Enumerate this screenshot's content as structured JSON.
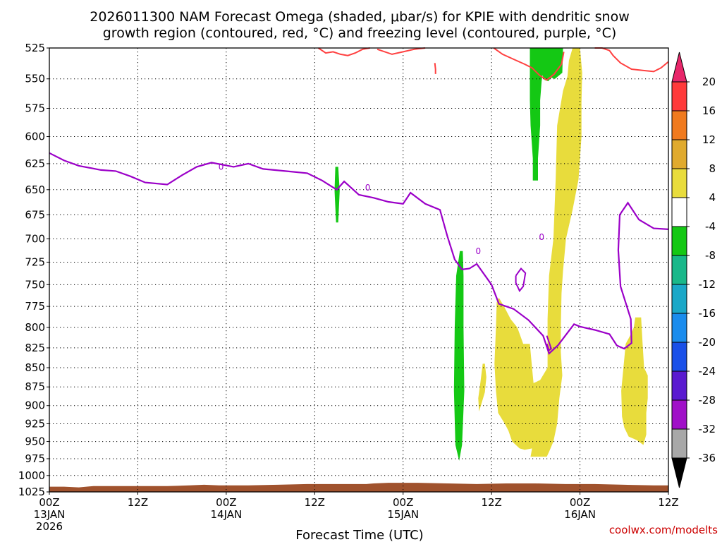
{
  "title_line1": "2026011300 NAM Forecast Omega (shaded, μbar/s) for KPIE with dendritic snow",
  "title_line2": "growth region (contoured, red, °C) and freezing level (contoured, purple, °C)",
  "watermark": "coolwx.com/modelts",
  "chart_data": {
    "type": "time-height contour",
    "xlabel": "Forecast Time (UTC)",
    "ylabel": "",
    "x_range_hours": [
      0,
      84
    ],
    "y_range_mb": [
      525,
      1025
    ],
    "y_axis": "pressure_log_inverted",
    "y_ticks": [
      "525",
      "550",
      "575",
      "600",
      "625",
      "650",
      "675",
      "700",
      "725",
      "750",
      "775",
      "800",
      "825",
      "850",
      "875",
      "900",
      "925",
      "950",
      "975",
      "1000",
      "1025"
    ],
    "x_ticks": [
      {
        "hour": 0,
        "label": "00Z",
        "sub": "13JAN",
        "sub2": "2026"
      },
      {
        "hour": 12,
        "label": "12Z",
        "sub": "",
        "sub2": ""
      },
      {
        "hour": 24,
        "label": "00Z",
        "sub": "14JAN",
        "sub2": ""
      },
      {
        "hour": 36,
        "label": "12Z",
        "sub": "",
        "sub2": ""
      },
      {
        "hour": 48,
        "label": "00Z",
        "sub": "15JAN",
        "sub2": ""
      },
      {
        "hour": 60,
        "label": "12Z",
        "sub": "",
        "sub2": ""
      },
      {
        "hour": 72,
        "label": "00Z",
        "sub": "16JAN",
        "sub2": ""
      },
      {
        "hour": 84,
        "label": "12Z",
        "sub": "",
        "sub2": ""
      }
    ],
    "grid": true,
    "colorbar": {
      "labels": [
        "20",
        "16",
        "12",
        "8",
        "4",
        "-4",
        "-8",
        "-12",
        "-16",
        "-20",
        "-24",
        "-28",
        "-32",
        "-36"
      ],
      "colors": [
        "#e8266a",
        "#ff3a3a",
        "#f07a1e",
        "#e0aa2e",
        "#e8dc3c",
        "#ffffff",
        "#14c814",
        "#19b88a",
        "#1aa8c8",
        "#1a8ced",
        "#1a50e8",
        "#5a1ad0",
        "#a010c8",
        "#a8a8a8",
        "#000000"
      ]
    },
    "freezing_level": {
      "name": "freezing level",
      "color": "#9b00c8",
      "points": [
        [
          0,
          615
        ],
        [
          2,
          622
        ],
        [
          4,
          627
        ],
        [
          7,
          631
        ],
        [
          9,
          632
        ],
        [
          11,
          637
        ],
        [
          13,
          643
        ],
        [
          16,
          645
        ],
        [
          18,
          636
        ],
        [
          20,
          628
        ],
        [
          22,
          624
        ],
        [
          25,
          628
        ],
        [
          27,
          625
        ],
        [
          29,
          630
        ],
        [
          32,
          632
        ],
        [
          35,
          634
        ],
        [
          37,
          641
        ],
        [
          39,
          650
        ],
        [
          40,
          642
        ],
        [
          42,
          655
        ],
        [
          44,
          658
        ],
        [
          46,
          662
        ],
        [
          48,
          664
        ],
        [
          49,
          653
        ],
        [
          51,
          664
        ],
        [
          53,
          670
        ],
        [
          54,
          697
        ],
        [
          55,
          722
        ],
        [
          56,
          733
        ],
        [
          57,
          732
        ],
        [
          58,
          727
        ],
        [
          60,
          750
        ],
        [
          61,
          772
        ],
        [
          63,
          778
        ],
        [
          65,
          791
        ],
        [
          67,
          810
        ],
        [
          67.8,
          832
        ],
        [
          69,
          822
        ],
        [
          70,
          810
        ],
        [
          71.2,
          796
        ],
        [
          72,
          799
        ],
        [
          74,
          803
        ],
        [
          76,
          808
        ],
        [
          77,
          822
        ],
        [
          78,
          826
        ],
        [
          79,
          819
        ],
        [
          78.9,
          790
        ],
        [
          77.5,
          752
        ],
        [
          77.2,
          712
        ],
        [
          77.4,
          675
        ],
        [
          78.5,
          663
        ],
        [
          80,
          680
        ],
        [
          82,
          689
        ],
        [
          84,
          690
        ]
      ]
    },
    "freezing_level_label": {
      "text": "0",
      "hour": 23.3,
      "mb": 628
    },
    "freezing_level_extra_labels": [
      {
        "text": "0",
        "hour": 43.2,
        "mb": 648
      },
      {
        "text": "0",
        "hour": 58.2,
        "mb": 713
      },
      {
        "text": "0",
        "hour": 66.8,
        "mb": 698
      }
    ],
    "freezing_level_loops": [
      [
        [
          63.3,
          740
        ],
        [
          64,
          732
        ],
        [
          64.6,
          737
        ],
        [
          64.3,
          752
        ],
        [
          63.8,
          757
        ],
        [
          63.3,
          748
        ],
        [
          63.3,
          740
        ]
      ],
      [
        [
          67.5,
          810
        ],
        [
          67.8,
          818
        ],
        [
          68.1,
          826
        ],
        [
          67.8,
          828
        ],
        [
          67.5,
          820
        ]
      ]
    ],
    "dgz_contours": {
      "name": "dendritic snow growth region",
      "color": "#ff4040",
      "lines": [
        [
          [
            36.5,
            525
          ],
          [
            37.5,
            529
          ],
          [
            38.5,
            528
          ],
          [
            39.5,
            530
          ],
          [
            40.5,
            531
          ],
          [
            41.5,
            529
          ],
          [
            42.5,
            526
          ],
          [
            43.5,
            525
          ]
        ],
        [
          [
            44.5,
            526
          ],
          [
            46.5,
            530
          ],
          [
            48,
            528
          ],
          [
            49.5,
            526
          ],
          [
            51,
            525
          ]
        ],
        [
          [
            52.3,
            537
          ],
          [
            52.4,
            542
          ],
          [
            52.4,
            546
          ]
        ],
        [
          [
            60.3,
            525
          ],
          [
            61.5,
            530
          ],
          [
            63,
            534
          ],
          [
            64.5,
            538
          ],
          [
            65.5,
            541
          ],
          [
            66.5,
            547
          ],
          [
            67.5,
            551
          ],
          [
            68.5,
            546
          ],
          [
            69.5,
            538
          ],
          [
            69.8,
            528
          ]
        ],
        [
          [
            74,
            525
          ],
          [
            75,
            525
          ],
          [
            76,
            527
          ],
          [
            76.5,
            531
          ],
          [
            77.5,
            537
          ],
          [
            79,
            542
          ],
          [
            80.5,
            543
          ],
          [
            82,
            544
          ],
          [
            83,
            541
          ],
          [
            84,
            536
          ]
        ]
      ]
    },
    "omega_rising_green": [
      [
        [
          38.8,
          628
        ],
        [
          39.2,
          628
        ],
        [
          39.4,
          651
        ],
        [
          39.2,
          683
        ],
        [
          38.9,
          683
        ],
        [
          38.7,
          651
        ],
        [
          38.8,
          628
        ]
      ],
      [
        [
          55.7,
          713
        ],
        [
          56.1,
          713
        ],
        [
          56.2,
          740
        ],
        [
          56.2,
          800
        ],
        [
          56.3,
          880
        ],
        [
          56.0,
          955
        ],
        [
          55.6,
          978
        ],
        [
          55.1,
          955
        ],
        [
          54.9,
          880
        ],
        [
          55.0,
          800
        ],
        [
          55.2,
          740
        ],
        [
          55.7,
          713
        ]
      ],
      [
        [
          65.2,
          525
        ],
        [
          69.7,
          525
        ],
        [
          69.6,
          545
        ],
        [
          68.6,
          550
        ],
        [
          68.1,
          549
        ],
        [
          67.7,
          552
        ],
        [
          67.2,
          551
        ],
        [
          66.9,
          547
        ],
        [
          66.8,
          552
        ],
        [
          66.6,
          568
        ],
        [
          66.6,
          590
        ],
        [
          66.3,
          620
        ],
        [
          66.3,
          641
        ],
        [
          65.6,
          641
        ],
        [
          65.6,
          620
        ],
        [
          65.3,
          590
        ],
        [
          65.2,
          568
        ],
        [
          65.2,
          545
        ],
        [
          65.2,
          525
        ]
      ]
    ],
    "omega_sinking_yellow": [
      [
        [
          71.0,
          525
        ],
        [
          72.0,
          525
        ],
        [
          72.3,
          545
        ],
        [
          72.2,
          570
        ],
        [
          72.2,
          600
        ],
        [
          71.8,
          640
        ],
        [
          71.0,
          670
        ],
        [
          70.1,
          700
        ],
        [
          69.7,
          735
        ],
        [
          69.5,
          760
        ],
        [
          69.4,
          800
        ],
        [
          69.4,
          830
        ],
        [
          69.6,
          860
        ],
        [
          69.2,
          890
        ],
        [
          68.9,
          925
        ],
        [
          68.4,
          950
        ],
        [
          67.8,
          965
        ],
        [
          67.5,
          972
        ],
        [
          66.6,
          972
        ],
        [
          66.0,
          972
        ],
        [
          65.3,
          972
        ],
        [
          65.5,
          960
        ],
        [
          64.5,
          962
        ],
        [
          63.8,
          960
        ],
        [
          62.8,
          950
        ],
        [
          62.3,
          935
        ],
        [
          61.8,
          925
        ],
        [
          60.9,
          910
        ],
        [
          60.6,
          880
        ],
        [
          60.4,
          845
        ],
        [
          60.6,
          800
        ],
        [
          60.7,
          770
        ],
        [
          61.0,
          765
        ],
        [
          61.7,
          775
        ],
        [
          62.6,
          790
        ],
        [
          63.5,
          800
        ],
        [
          64.3,
          820
        ],
        [
          65.2,
          820
        ],
        [
          65.5,
          850
        ],
        [
          65.7,
          870
        ],
        [
          66.6,
          866
        ],
        [
          67.6,
          850
        ],
        [
          67.6,
          790
        ],
        [
          67.8,
          740
        ],
        [
          68.4,
          700
        ],
        [
          68.7,
          640
        ],
        [
          68.9,
          590
        ],
        [
          69.3,
          575
        ],
        [
          69.7,
          560
        ],
        [
          70.3,
          548
        ],
        [
          70.5,
          535
        ],
        [
          71.0,
          525
        ]
      ],
      [
        [
          58.8,
          845
        ],
        [
          59.1,
          845
        ],
        [
          59.3,
          862
        ],
        [
          59.1,
          882
        ],
        [
          58.7,
          895
        ],
        [
          58.3,
          908
        ],
        [
          58.2,
          890
        ],
        [
          58.5,
          868
        ],
        [
          58.8,
          845
        ]
      ],
      [
        [
          79.5,
          788
        ],
        [
          80.3,
          788
        ],
        [
          80.5,
          820
        ],
        [
          80.7,
          850
        ],
        [
          81.2,
          860
        ],
        [
          81.2,
          890
        ],
        [
          81.0,
          910
        ],
        [
          81.0,
          940
        ],
        [
          80.6,
          955
        ],
        [
          79.7,
          948
        ],
        [
          78.6,
          943
        ],
        [
          78.0,
          930
        ],
        [
          77.7,
          915
        ],
        [
          77.6,
          880
        ],
        [
          77.9,
          850
        ],
        [
          78.2,
          820
        ],
        [
          78.8,
          810
        ],
        [
          79.3,
          800
        ],
        [
          79.5,
          788
        ]
      ]
    ],
    "terrain_top_mb": [
      [
        0,
        1017
      ],
      [
        2,
        1017
      ],
      [
        4,
        1018
      ],
      [
        6,
        1016
      ],
      [
        10,
        1016
      ],
      [
        16,
        1016
      ],
      [
        19,
        1015
      ],
      [
        21,
        1014
      ],
      [
        23,
        1015
      ],
      [
        27,
        1015
      ],
      [
        31,
        1014
      ],
      [
        35,
        1013
      ],
      [
        39,
        1013
      ],
      [
        43,
        1013
      ],
      [
        44,
        1012
      ],
      [
        46,
        1011
      ],
      [
        50,
        1011
      ],
      [
        54,
        1012
      ],
      [
        58,
        1013
      ],
      [
        62,
        1012
      ],
      [
        66,
        1012
      ],
      [
        70,
        1013
      ],
      [
        74,
        1013
      ],
      [
        78,
        1014
      ],
      [
        82,
        1015
      ],
      [
        84,
        1015
      ]
    ],
    "terrain_color": "#a0522d"
  }
}
